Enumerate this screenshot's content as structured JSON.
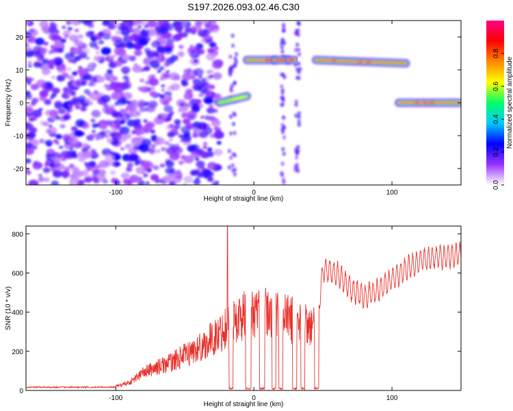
{
  "title": "S197.2026.093.02.46.C30",
  "colors": {
    "background": "#ffffff",
    "snr_line": "#e8302a",
    "scatter_purple": "#8a2be2",
    "axis": "#000000"
  },
  "chart_data": [
    {
      "type": "heatmap",
      "name": "spectrogram",
      "title": "S197.2026.093.02.46.C30",
      "xlabel": "Height of straight line (km)",
      "ylabel": "Frequency (Hz)",
      "xlim": [
        -165,
        150
      ],
      "ylim": [
        -25,
        25
      ],
      "xticks": [
        -100,
        0,
        100
      ],
      "yticks": [
        -20,
        -10,
        0,
        10,
        20
      ],
      "grid": false,
      "colorbar": {
        "label": "Normalized spectral amplitude",
        "range": [
          0.0,
          1.0
        ],
        "ticks": [
          "0.0",
          "0.2",
          "0.4",
          "0.6",
          "0.8"
        ],
        "colormap": [
          "#ffffff",
          "#9933ff",
          "#0000ff",
          "#00ccff",
          "#00ff66",
          "#ffff00",
          "#ff8800",
          "#ff0000",
          "#ff0088"
        ]
      },
      "noise_region": {
        "x_start": -165,
        "x_end": -25,
        "amplitude": 0.15
      },
      "gaps": [
        [
          -18,
          0
        ],
        [
          20,
          28
        ],
        [
          30,
          42
        ]
      ],
      "segments": [
        {
          "x": [
            -25,
            -5
          ],
          "freq": [
            0,
            2
          ],
          "peak": 0.55
        },
        {
          "x": [
            -5,
            15
          ],
          "freq": [
            13,
            13
          ],
          "peak": 0.85
        },
        {
          "x": [
            15,
            25
          ],
          "freq": [
            13,
            13
          ],
          "peak": 0.85
        },
        {
          "x": [
            25,
            30
          ],
          "freq": [
            13,
            13
          ],
          "peak": 0.8
        },
        {
          "x": [
            45,
            110
          ],
          "freq": [
            13,
            12
          ],
          "peak": 0.9
        },
        {
          "x": [
            105,
            150
          ],
          "freq": [
            0,
            0
          ],
          "peak": 0.85
        }
      ]
    },
    {
      "type": "line",
      "name": "snr",
      "xlabel": "Height of straight line (km)",
      "ylabel": "SNR (10 * v/v)",
      "xlim": [
        -165,
        150
      ],
      "ylim": [
        0,
        840
      ],
      "xticks": [
        -100,
        0,
        100
      ],
      "yticks": [
        0,
        200,
        400,
        600,
        800
      ],
      "grid": false,
      "trend": {
        "x": [
          -165,
          -100,
          -90,
          -80,
          -60,
          -40,
          -25,
          -20,
          -5,
          10,
          25,
          40,
          45,
          50,
          60,
          70,
          80,
          90,
          100,
          110,
          120,
          130,
          140,
          150
        ],
        "y": [
          20,
          20,
          40,
          90,
          140,
          210,
          280,
          320,
          380,
          380,
          360,
          330,
          300,
          620,
          600,
          520,
          480,
          510,
          570,
          620,
          660,
          680,
          680,
          700
        ]
      },
      "spike": {
        "x": -19,
        "y": 840
      },
      "dropouts": [
        [
          -18,
          -15
        ],
        [
          -6,
          -2
        ],
        [
          4,
          8
        ],
        [
          13,
          16
        ],
        [
          18,
          21
        ],
        [
          28,
          31
        ],
        [
          34,
          37
        ],
        [
          44,
          47
        ]
      ]
    }
  ]
}
